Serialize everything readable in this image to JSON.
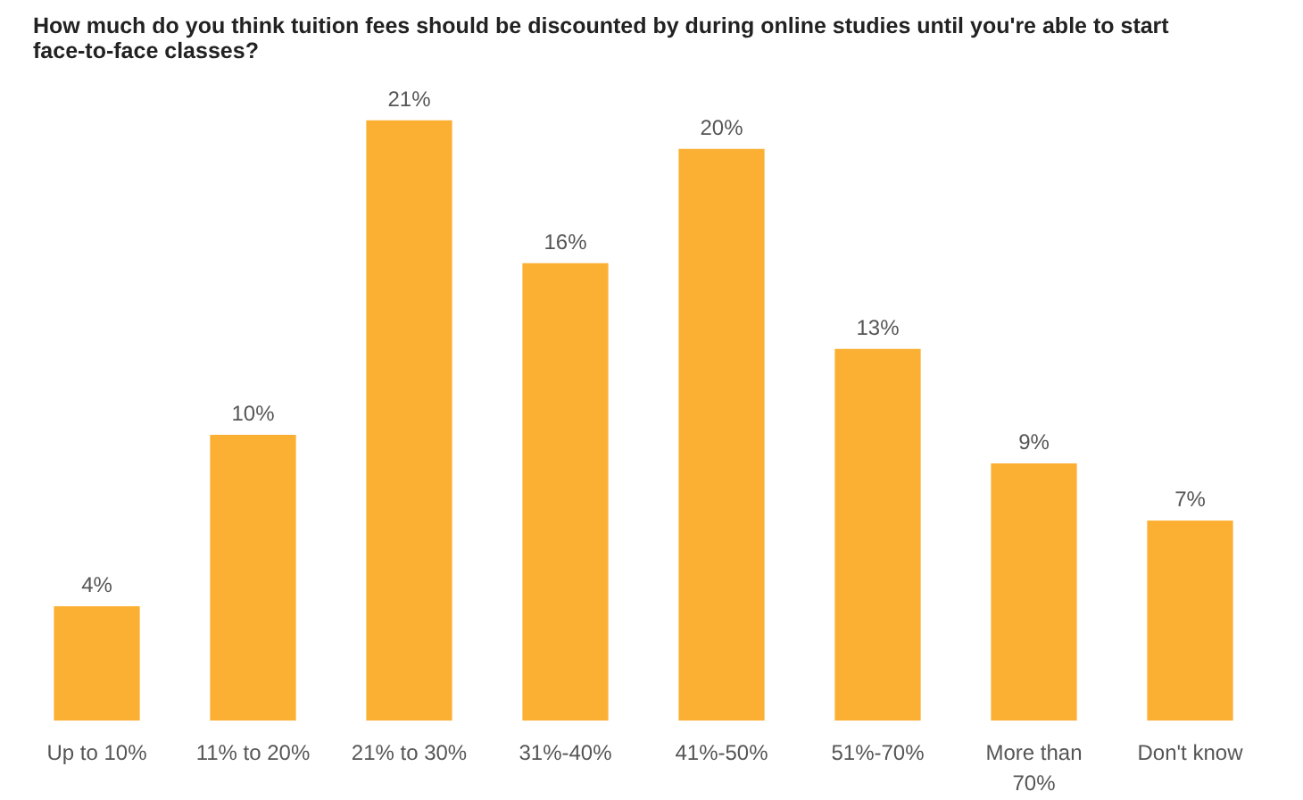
{
  "chart_data": {
    "type": "bar",
    "title": "How much do you think tuition fees should be discounted by during online studies until you're able to start face-to-face classes?",
    "categories": [
      "Up to 10%",
      "11% to 20%",
      "21% to 30%",
      "31%-40%",
      "41%-50%",
      "51%-70%",
      "More than 70%",
      "Don't know"
    ],
    "values": [
      4,
      10,
      21,
      16,
      20,
      13,
      9,
      7
    ],
    "value_labels": [
      "4%",
      "10%",
      "21%",
      "16%",
      "20%",
      "13%",
      "9%",
      "7%"
    ],
    "color": "#fbb034",
    "grid": false
  }
}
